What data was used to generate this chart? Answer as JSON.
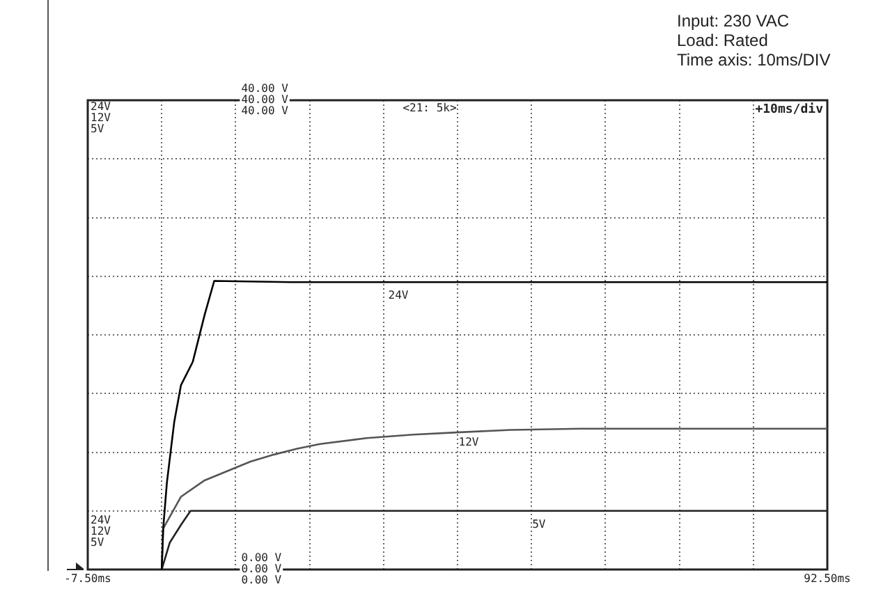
{
  "chart_data": {
    "type": "line",
    "annotations": [
      "Input: 230 VAC",
      "Load: Rated",
      "Time axis: 10ms/DIV",
      "<21: 5k>",
      "+10ms/div"
    ],
    "xlim": [
      -7.5,
      92.5
    ],
    "xticks": [
      {
        "value": -7.5,
        "label": "-7.50ms"
      },
      {
        "value": 2.5,
        "label": null
      },
      {
        "value": 12.5,
        "label": null
      },
      {
        "value": 22.5,
        "label": null
      },
      {
        "value": 32.5,
        "label": null
      },
      {
        "value": 42.5,
        "label": null
      },
      {
        "value": 52.5,
        "label": null
      },
      {
        "value": 62.5,
        "label": null
      },
      {
        "value": 72.5,
        "label": null
      },
      {
        "value": 82.5,
        "label": null
      },
      {
        "value": 92.5,
        "label": "92.50ms"
      }
    ],
    "ylim": [
      0,
      40
    ],
    "yticks": [
      {
        "value": 0,
        "label": "0.00 V"
      },
      {
        "value": 5,
        "label": null
      },
      {
        "value": 10,
        "label": null
      },
      {
        "value": 15,
        "label": null
      },
      {
        "value": 20,
        "label": null
      },
      {
        "value": 25,
        "label": null
      },
      {
        "value": 30,
        "label": null
      },
      {
        "value": 35,
        "label": null
      },
      {
        "value": 40,
        "label": "40.00 V"
      }
    ],
    "grid": true,
    "legend": false,
    "marker": "none",
    "line_style": "solid",
    "series": [
      {
        "name": "24V",
        "color": "#000000",
        "x": [
          2.5,
          2.7,
          3.2,
          4.2,
          5.1,
          6.7,
          8.3,
          9.6,
          20,
          92.5
        ],
        "values": [
          0,
          3.5,
          7.4,
          12.6,
          15.7,
          17.7,
          21.7,
          24.6,
          24.5,
          24.5
        ]
      },
      {
        "name": "12V",
        "color": "#555555",
        "x": [
          2.5,
          2.7,
          5.1,
          8.3,
          11.4,
          14.5,
          17.7,
          20.8,
          23.9,
          30.2,
          36.5,
          42.8,
          49.7,
          59.1,
          92.5
        ],
        "values": [
          0,
          3.5,
          6.2,
          7.6,
          8.4,
          9.2,
          9.8,
          10.3,
          10.7,
          11.2,
          11.5,
          11.7,
          11.9,
          12,
          12
        ]
      },
      {
        "name": "5V",
        "color": "#222222",
        "x": [
          2.5,
          3.6,
          5.1,
          6.4,
          92.5
        ],
        "values": [
          0,
          2.3,
          3.8,
          5,
          5
        ]
      }
    ]
  }
}
